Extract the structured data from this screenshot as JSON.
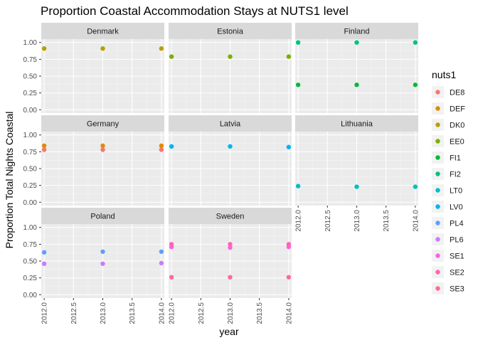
{
  "chart_data": {
    "type": "scatter",
    "title": "Proportion Coastal Accommodation Stays at NUTS1 level",
    "xlabel": "year",
    "ylabel": "Proportion Total Nights Coastal",
    "xlim": [
      2011.95,
      2014.05
    ],
    "ylim": [
      -0.05,
      1.05
    ],
    "x_ticks": [
      2012.0,
      2012.5,
      2013.0,
      2013.5,
      2014.0
    ],
    "x_tick_labels": [
      "2012.0",
      "2012.5",
      "2013.0",
      "2013.5",
      "2014.0"
    ],
    "y_ticks": [
      0,
      0.25,
      0.5,
      0.75,
      1.0
    ],
    "y_tick_labels": [
      "0.00",
      "0.25",
      "0.50",
      "0.75",
      "1.00"
    ],
    "grid": true,
    "legend": {
      "title": "nuts1",
      "position": "right",
      "entries": [
        {
          "label": "DE8",
          "color": "#F8766D"
        },
        {
          "label": "DEF",
          "color": "#DE8C00"
        },
        {
          "label": "DK0",
          "color": "#B79F00"
        },
        {
          "label": "EE0",
          "color": "#7CAE00"
        },
        {
          "label": "FI1",
          "color": "#00BA38"
        },
        {
          "label": "FI2",
          "color": "#00C08B"
        },
        {
          "label": "LT0",
          "color": "#00BFC4"
        },
        {
          "label": "LV0",
          "color": "#00B4F0"
        },
        {
          "label": "PL4",
          "color": "#619CFF"
        },
        {
          "label": "PL6",
          "color": "#C77CFF"
        },
        {
          "label": "SE1",
          "color": "#F564E3"
        },
        {
          "label": "SE2",
          "color": "#FF64B0"
        },
        {
          "label": "SE3",
          "color": "#FF6C91"
        }
      ]
    },
    "facets": [
      {
        "title": "Denmark",
        "series": [
          {
            "name": "DK0",
            "x": [
              2012,
              2013,
              2014
            ],
            "y": [
              0.91,
              0.91,
              0.91
            ]
          }
        ]
      },
      {
        "title": "Estonia",
        "series": [
          {
            "name": "EE0",
            "x": [
              2012,
              2013,
              2014
            ],
            "y": [
              0.79,
              0.79,
              0.79
            ]
          }
        ]
      },
      {
        "title": "Finland",
        "series": [
          {
            "name": "FI1",
            "x": [
              2012,
              2013,
              2014
            ],
            "y": [
              0.37,
              0.37,
              0.37
            ]
          },
          {
            "name": "FI2",
            "x": [
              2012,
              2013,
              2014
            ],
            "y": [
              1.0,
              1.0,
              1.0
            ]
          }
        ]
      },
      {
        "title": "Germany",
        "series": [
          {
            "name": "DE8",
            "x": [
              2012,
              2013,
              2014
            ],
            "y": [
              0.78,
              0.78,
              0.78
            ]
          },
          {
            "name": "DEF",
            "x": [
              2012,
              2013,
              2014
            ],
            "y": [
              0.84,
              0.84,
              0.84
            ]
          }
        ]
      },
      {
        "title": "Latvia",
        "series": [
          {
            "name": "LV0",
            "x": [
              2012,
              2013,
              2014
            ],
            "y": [
              0.83,
              0.83,
              0.82
            ]
          }
        ]
      },
      {
        "title": "Lithuania",
        "series": [
          {
            "name": "LT0",
            "x": [
              2012,
              2013,
              2014
            ],
            "y": [
              0.24,
              0.23,
              0.23
            ]
          }
        ]
      },
      {
        "title": "Poland",
        "series": [
          {
            "name": "PL4",
            "x": [
              2012,
              2013,
              2014
            ],
            "y": [
              0.63,
              0.64,
              0.64
            ]
          },
          {
            "name": "PL6",
            "x": [
              2012,
              2013,
              2014
            ],
            "y": [
              0.46,
              0.46,
              0.47
            ]
          }
        ]
      },
      {
        "title": "Sweden",
        "series": [
          {
            "name": "SE1",
            "x": [
              2012,
              2013,
              2014
            ],
            "y": [
              0.71,
              0.7,
              0.71
            ]
          },
          {
            "name": "SE2",
            "x": [
              2012,
              2013,
              2014
            ],
            "y": [
              0.75,
              0.75,
              0.75
            ]
          },
          {
            "name": "SE3",
            "x": [
              2012,
              2013,
              2014
            ],
            "y": [
              0.26,
              0.26,
              0.26
            ]
          }
        ]
      }
    ]
  }
}
